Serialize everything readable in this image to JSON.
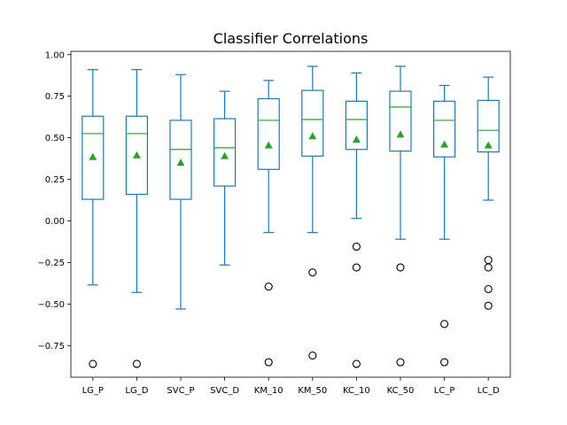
{
  "chart_data": {
    "type": "box",
    "title": "Classifier Correlations",
    "xlabel": "",
    "ylabel": "",
    "ylim": [
      -0.94,
      1.02
    ],
    "yticks": [
      -0.75,
      -0.5,
      -0.25,
      0.0,
      0.25,
      0.5,
      0.75,
      1.0
    ],
    "ytick_labels": [
      "−0.75",
      "−0.50",
      "−0.25",
      "0.00",
      "0.25",
      "0.50",
      "0.75",
      "1.00"
    ],
    "grid": false,
    "colors": {
      "box": "#1f77b4",
      "median": "#2ca02c",
      "mean": "#2ca02c",
      "flier": "#000000"
    },
    "categories": [
      "LG_P",
      "LG_D",
      "SVC_P",
      "SVC_D",
      "KM_10",
      "KM_50",
      "KC_10",
      "KC_50",
      "LC_P",
      "LC_D"
    ],
    "boxes": [
      {
        "whisker_low": -0.385,
        "q1": 0.13,
        "median": 0.525,
        "q3": 0.63,
        "whisker_high": 0.91,
        "mean": 0.385,
        "outliers": [
          -0.86
        ]
      },
      {
        "whisker_low": -0.43,
        "q1": 0.16,
        "median": 0.525,
        "q3": 0.63,
        "whisker_high": 0.91,
        "mean": 0.395,
        "outliers": [
          -0.86
        ]
      },
      {
        "whisker_low": -0.53,
        "q1": 0.13,
        "median": 0.43,
        "q3": 0.605,
        "whisker_high": 0.88,
        "mean": 0.35,
        "outliers": []
      },
      {
        "whisker_low": -0.265,
        "q1": 0.21,
        "median": 0.44,
        "q3": 0.615,
        "whisker_high": 0.78,
        "mean": 0.39,
        "outliers": []
      },
      {
        "whisker_low": -0.07,
        "q1": 0.31,
        "median": 0.605,
        "q3": 0.735,
        "whisker_high": 0.845,
        "mean": 0.455,
        "outliers": [
          -0.395,
          -0.85
        ]
      },
      {
        "whisker_low": -0.07,
        "q1": 0.39,
        "median": 0.61,
        "q3": 0.785,
        "whisker_high": 0.93,
        "mean": 0.51,
        "outliers": [
          -0.31,
          -0.81
        ]
      },
      {
        "whisker_low": 0.015,
        "q1": 0.43,
        "median": 0.61,
        "q3": 0.72,
        "whisker_high": 0.89,
        "mean": 0.49,
        "outliers": [
          -0.155,
          -0.28,
          -0.86
        ]
      },
      {
        "whisker_low": -0.11,
        "q1": 0.42,
        "median": 0.685,
        "q3": 0.78,
        "whisker_high": 0.93,
        "mean": 0.52,
        "outliers": [
          -0.28,
          -0.85
        ]
      },
      {
        "whisker_low": -0.11,
        "q1": 0.385,
        "median": 0.605,
        "q3": 0.72,
        "whisker_high": 0.815,
        "mean": 0.46,
        "outliers": [
          -0.62,
          -0.85
        ]
      },
      {
        "whisker_low": 0.125,
        "q1": 0.415,
        "median": 0.545,
        "q3": 0.725,
        "whisker_high": 0.865,
        "mean": 0.455,
        "outliers": [
          -0.235,
          -0.28,
          -0.41,
          -0.51
        ]
      }
    ]
  }
}
